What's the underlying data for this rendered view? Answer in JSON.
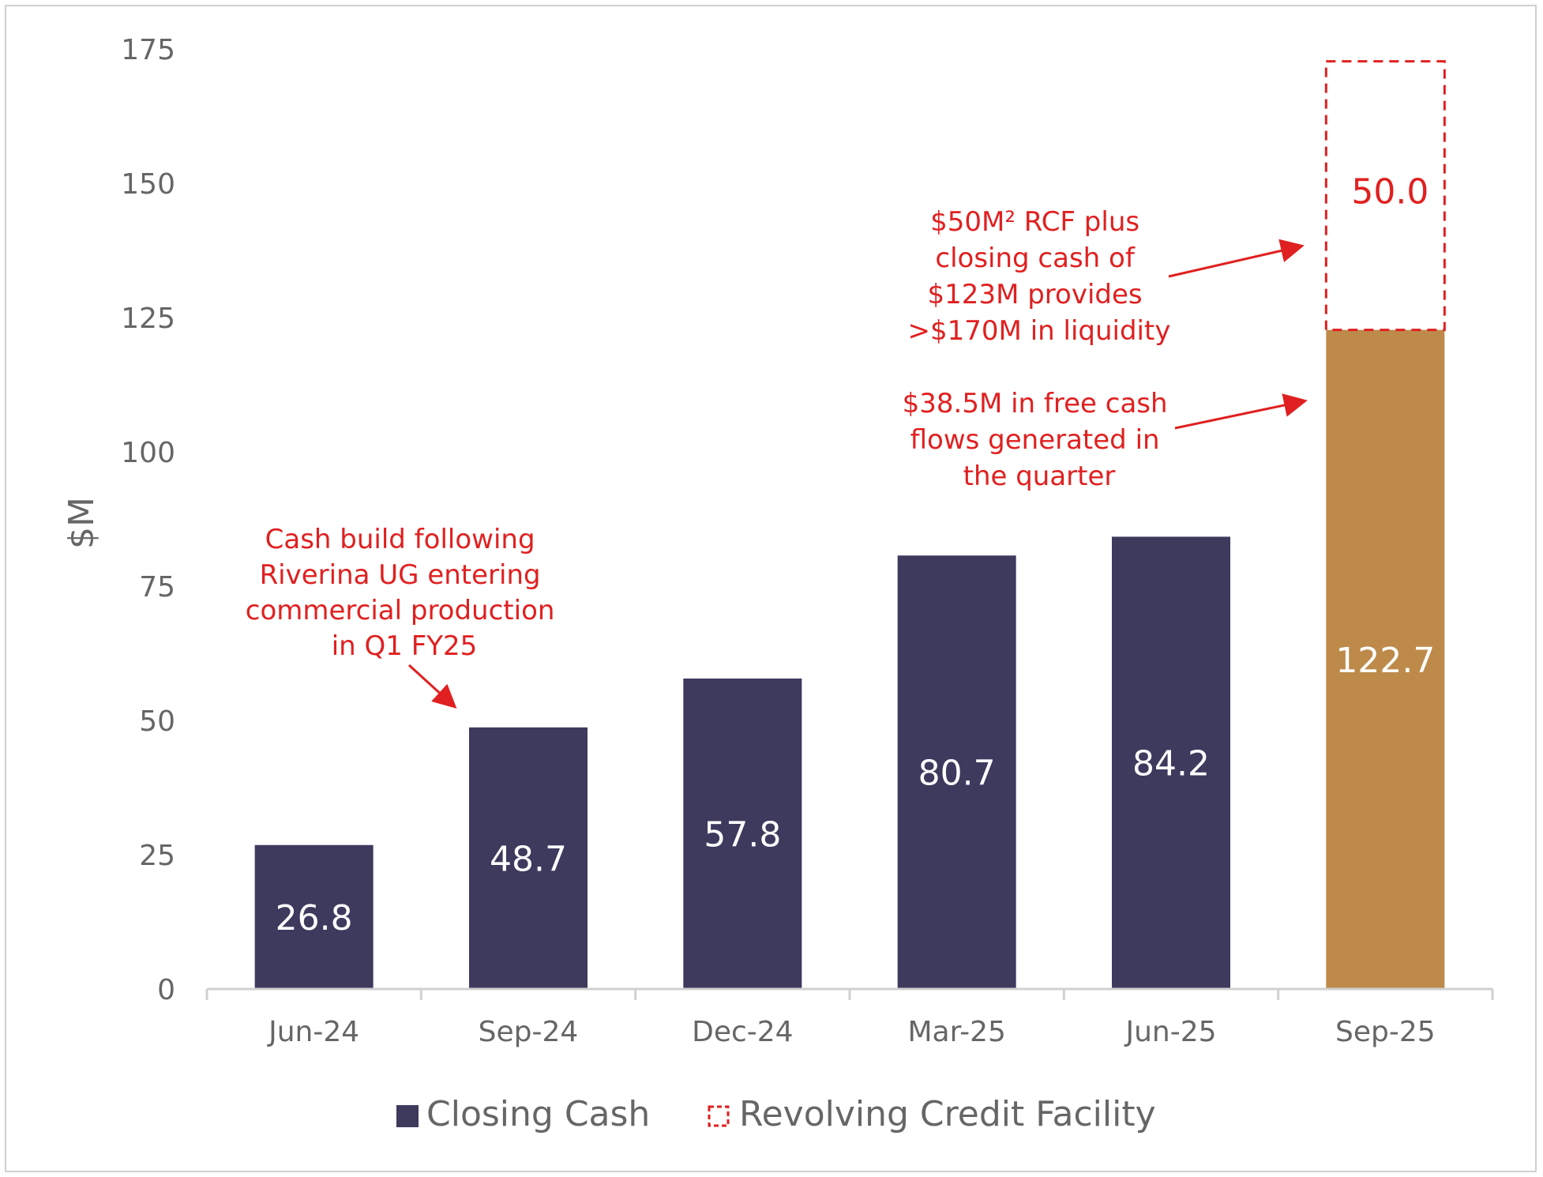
{
  "chart_data": {
    "type": "bar",
    "ylabel": "$M",
    "ylim": [
      0,
      175
    ],
    "yticks": [
      0,
      25,
      50,
      75,
      100,
      125,
      150,
      175
    ],
    "categories": [
      "Jun-24",
      "Sep-24",
      "Dec-24",
      "Mar-25",
      "Jun-25",
      "Sep-25"
    ],
    "series": [
      {
        "name": "Closing Cash",
        "values": [
          26.8,
          48.7,
          57.8,
          80.7,
          84.2,
          122.7
        ],
        "labels": [
          "26.8",
          "48.7",
          "57.8",
          "80.7",
          "84.2",
          "122.7"
        ],
        "colors": [
          "#3d3a5e",
          "#3d3a5e",
          "#3d3a5e",
          "#3d3a5e",
          "#3d3a5e",
          "#bd8a4a"
        ]
      },
      {
        "name": "Revolving Credit Facility",
        "values": [
          0,
          0,
          0,
          0,
          0,
          50.0
        ],
        "labels": [
          "",
          "",
          "",
          "",
          "",
          "50.0"
        ],
        "color": "#e02020",
        "style": "dashed-outline"
      }
    ],
    "annotations": [
      {
        "id": "cash-build",
        "lines": [
          "Cash build following",
          "Riverina UG entering",
          "commercial production",
          "in Q1 FY25"
        ]
      },
      {
        "id": "rcf-liquidity",
        "lines": [
          "$50M² RCF plus",
          "closing cash of",
          "$123M provides",
          ">$170M in liquidity"
        ]
      },
      {
        "id": "free-cash",
        "lines": [
          "$38.5M in free cash",
          "flows generated in",
          "the quarter"
        ]
      }
    ],
    "legend": {
      "position": "bottom",
      "items": [
        "Closing Cash",
        "Revolving Credit Facility"
      ]
    },
    "grid": false
  },
  "colors": {
    "closing_cash": "#3d3a5e",
    "latest_bar": "#bd8a4a",
    "annotation": "#e02020",
    "axis": "#d0d0d0"
  }
}
